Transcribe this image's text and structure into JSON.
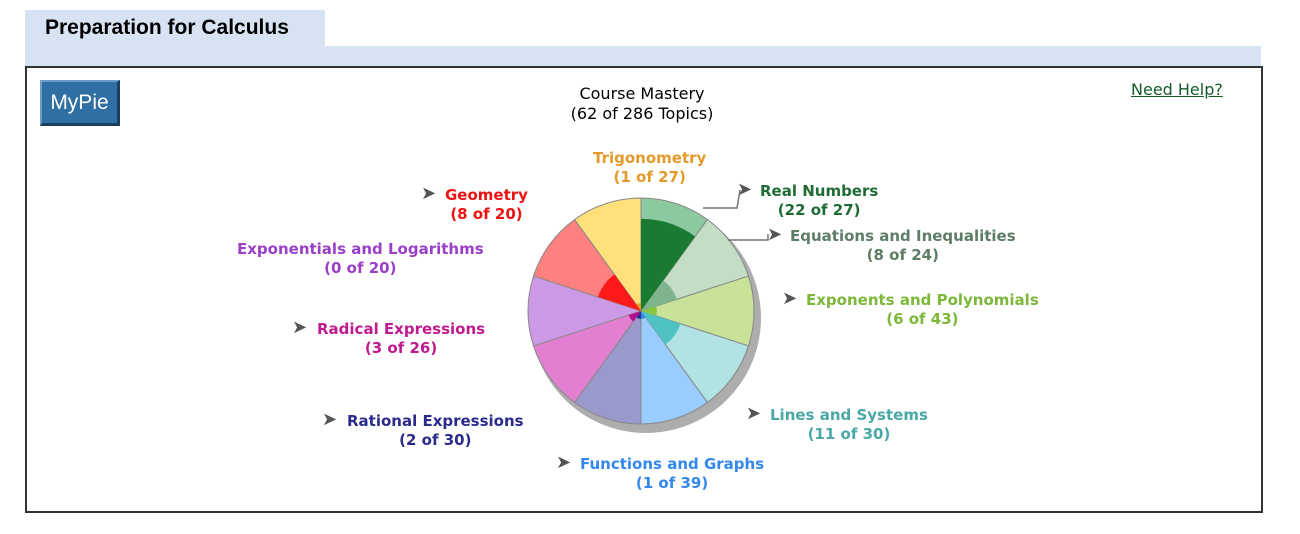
{
  "tab": {
    "title": "Preparation for Calculus"
  },
  "mypie_button": "MyPie",
  "help_link": "Need Help?",
  "chart_data": {
    "type": "pie",
    "title": "Course Mastery",
    "subtitle": "(62 of 286 Topics)",
    "slices": [
      {
        "name": "Real Numbers",
        "mastered": 22,
        "total": 27,
        "count_label": "(22 of 27)",
        "color": "#1a7a32",
        "light": "#8cc9a0",
        "label_color": "#1f6b34"
      },
      {
        "name": "Equations and Inequalities",
        "mastered": 8,
        "total": 24,
        "count_label": "(8 of 24)",
        "color": "#7fb58c",
        "light": "#c3dec4",
        "label_color": "#5e7d66"
      },
      {
        "name": "Exponents and Polynomials",
        "mastered": 6,
        "total": 43,
        "count_label": "(6 of 43)",
        "color": "#8cc63f",
        "light": "#c8e29a",
        "label_color": "#7cb83a"
      },
      {
        "name": "Lines and Systems",
        "mastered": 11,
        "total": 30,
        "count_label": "(11 of 30)",
        "color": "#4fc3c3",
        "light": "#b2e3e3",
        "label_color": "#4aa8a8"
      },
      {
        "name": "Functions and Graphs",
        "mastered": 1,
        "total": 39,
        "count_label": "(1 of 39)",
        "color": "#3388ee",
        "light": "#99ccff",
        "label_color": "#3388ee"
      },
      {
        "name": "Rational Expressions",
        "mastered": 2,
        "total": 30,
        "count_label": "(2 of 30)",
        "color": "#2b2b8a",
        "light": "#9999cc",
        "label_color": "#2b2b8a"
      },
      {
        "name": "Radical Expressions",
        "mastered": 3,
        "total": 26,
        "count_label": "(3 of 26)",
        "color": "#b0108f",
        "light": "#e37fd0",
        "label_color": "#c01a8f"
      },
      {
        "name": "Exponentials and Logarithms",
        "mastered": 0,
        "total": 20,
        "count_label": "(0 of 20)",
        "color": "#a64fd0",
        "light": "#cc99e6",
        "label_color": "#9b3fc7"
      },
      {
        "name": "Geometry",
        "mastered": 8,
        "total": 20,
        "count_label": "(8 of 20)",
        "color": "#ff1a1a",
        "light": "#ff8080",
        "label_color": "#ee1111"
      },
      {
        "name": "Trigonometry",
        "mastered": 1,
        "total": 27,
        "count_label": "(1 of 27)",
        "color": "#e0a020",
        "light": "#ffe07a",
        "label_color": "#e39a2a"
      }
    ]
  }
}
